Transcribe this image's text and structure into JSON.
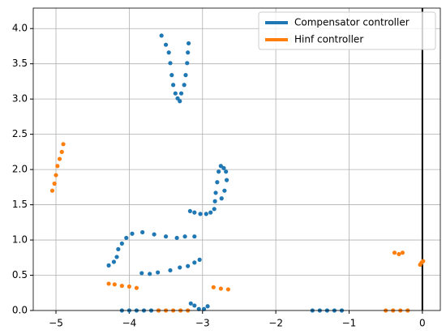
{
  "chart_data": {
    "type": "scatter",
    "xlim": [
      -5.31,
      0.245
    ],
    "ylim": [
      0,
      4.29
    ],
    "xticks": [
      {
        "value": -5,
        "label": "−5"
      },
      {
        "value": -4,
        "label": "−4"
      },
      {
        "value": -3,
        "label": "−3"
      },
      {
        "value": -2,
        "label": "−2"
      },
      {
        "value": -1,
        "label": "−1"
      },
      {
        "value": 0,
        "label": "0"
      }
    ],
    "yticks": [
      {
        "value": 0,
        "label": "0.0"
      },
      {
        "value": 0.5,
        "label": "0.5"
      },
      {
        "value": 1,
        "label": "1.0"
      },
      {
        "value": 1.5,
        "label": "1.5"
      },
      {
        "value": 2,
        "label": "2.0"
      },
      {
        "value": 2.5,
        "label": "2.5"
      },
      {
        "value": 3,
        "label": "3.0"
      },
      {
        "value": 3.5,
        "label": "3.5"
      },
      {
        "value": 4,
        "label": "4.0"
      }
    ],
    "grid": true,
    "vline": 0,
    "legend": "upper right",
    "series": [
      {
        "name": "Compensator controller",
        "color": "#1f77b4",
        "x": [
          -3.56,
          -3.5,
          -3.46,
          -3.44,
          -3.42,
          -3.4,
          -3.37,
          -3.34,
          -3.31,
          -3.19,
          -3.2,
          -3.21,
          -3.23,
          -3.25,
          -3.29,
          -3.17,
          -3.11,
          -3.03,
          -2.95,
          -2.89,
          -2.84,
          -2.83,
          -2.82,
          -2.8,
          -2.78,
          -2.75,
          -2.71,
          -2.68,
          -2.67,
          -2.7,
          -2.74,
          -4.28,
          -4.21,
          -4.17,
          -4.15,
          -4.1,
          -4.04,
          -3.96,
          -3.82,
          -3.66,
          -3.5,
          -3.35,
          -3.24,
          -3.11,
          -3.83,
          -3.72,
          -3.61,
          -3.44,
          -3.31,
          -3.2,
          -3.11,
          -3.04,
          -3.16,
          -3.11,
          -3.05,
          -2.98,
          -2.93,
          -4.1,
          -4.0,
          -3.9,
          -3.8,
          -3.7,
          -3.6,
          -1.5,
          -1.4,
          -1.3,
          -1.2,
          -1.1
        ],
        "values": [
          3.9,
          3.77,
          3.66,
          3.51,
          3.34,
          3.2,
          3.08,
          3.01,
          2.97,
          3.79,
          3.66,
          3.51,
          3.34,
          3.2,
          3.08,
          1.41,
          1.39,
          1.37,
          1.37,
          1.39,
          1.44,
          1.55,
          1.67,
          1.82,
          1.97,
          2.05,
          2.02,
          1.97,
          1.85,
          1.7,
          1.59,
          0.64,
          0.69,
          0.76,
          0.87,
          0.95,
          1.03,
          1.09,
          1.11,
          1.08,
          1.05,
          1.03,
          1.05,
          1.05,
          0.53,
          0.52,
          0.54,
          0.57,
          0.61,
          0.63,
          0.68,
          0.72,
          0.1,
          0.07,
          0.02,
          0.02,
          0.06,
          0,
          0,
          0,
          0,
          0,
          0,
          0,
          0,
          0,
          0,
          0
        ]
      },
      {
        "name": "Hinf controller",
        "color": "#ff7f0e",
        "x": [
          -5.05,
          -5.02,
          -5.0,
          -4.98,
          -4.95,
          -4.92,
          -4.9,
          -4.28,
          -4.2,
          -4.1,
          -4.0,
          -3.9,
          -2.85,
          -2.75,
          -2.65,
          -3.6,
          -3.5,
          -3.4,
          -3.3,
          -3.2,
          -0.38,
          -0.32,
          -0.27,
          -0.03,
          -0.01,
          0.01,
          -0.5,
          -0.4,
          -0.3,
          -0.2
        ],
        "values": [
          1.7,
          1.8,
          1.92,
          2.05,
          2.15,
          2.25,
          2.36,
          0.38,
          0.37,
          0.35,
          0.34,
          0.32,
          0.33,
          0.31,
          0.3,
          0,
          0,
          0,
          0,
          0,
          0.82,
          0.8,
          0.82,
          0.65,
          0.68,
          0.7,
          0,
          0,
          0,
          0
        ]
      }
    ]
  }
}
